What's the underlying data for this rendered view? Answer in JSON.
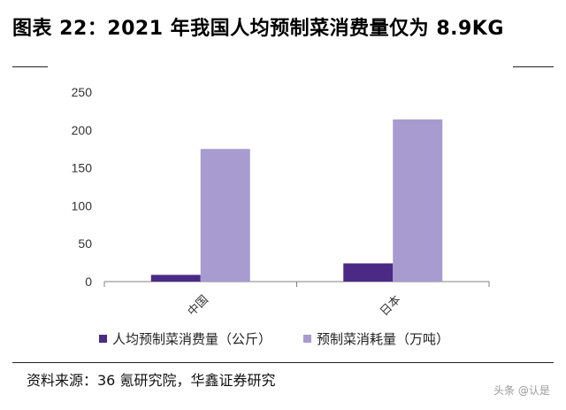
{
  "figure": {
    "title": "图表 22：2021 年我国人均预制菜消费量仅为 8.9KG",
    "source": "资料来源：36 氪研究院，华鑫证券研究",
    "watermark": "头条 @认是"
  },
  "colors": {
    "series1": "#4b2a86",
    "series2": "#a79bd0",
    "axis": "#808080"
  },
  "chart_data": {
    "type": "bar",
    "categories": [
      "中国",
      "日本"
    ],
    "series": [
      {
        "name": "人均预制菜消费量（公斤）",
        "values": [
          8.9,
          24
        ]
      },
      {
        "name": "预制菜消耗量（万吨）",
        "values": [
          175,
          214
        ]
      }
    ],
    "yticks": [
      "0",
      "50",
      "100",
      "150",
      "200",
      "250"
    ],
    "ylim": [
      0,
      250
    ],
    "grid": false,
    "legend": "bottom"
  }
}
